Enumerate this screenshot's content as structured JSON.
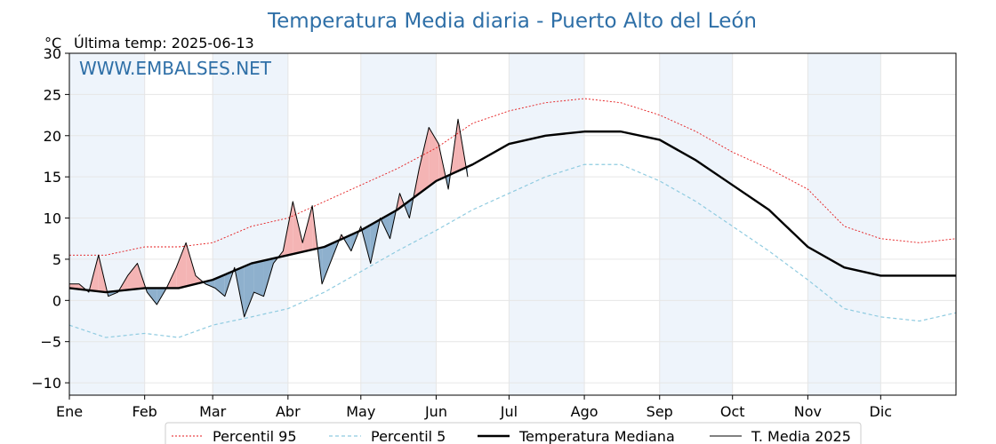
{
  "chart_data": {
    "type": "line",
    "title": "Temperatura Media diaria - Puerto Alto del León",
    "unit_label": "°C",
    "last_temp_label": "Última temp: 2025-06-13",
    "watermark": "WWW.EMBALSES.NET",
    "ylim": [
      -11.5,
      30
    ],
    "xlim": [
      0,
      365
    ],
    "y_ticks": [
      30,
      25,
      20,
      15,
      10,
      5,
      0,
      -5,
      -10
    ],
    "y_tick_labels": [
      "30",
      "25",
      "20",
      "15",
      "10",
      "5",
      "0",
      "−5",
      "−10"
    ],
    "months": [
      "Ene",
      "Feb",
      "Mar",
      "Abr",
      "May",
      "Jun",
      "Jul",
      "Ago",
      "Sep",
      "Oct",
      "Nov",
      "Dic"
    ],
    "month_days": [
      0,
      31,
      59,
      90,
      120,
      151,
      181,
      212,
      243,
      273,
      304,
      334
    ],
    "grid": true,
    "legend_position": "bottom-center",
    "legend": [
      "Percentil 95",
      "Percentil 5",
      "Temperatura Mediana",
      "T. Media 2025"
    ],
    "colors": {
      "p95": "#e41a1c",
      "p5": "#8fcbe0",
      "median": "#000000",
      "current": "#000000",
      "fill_above": "#f4b4b4",
      "fill_below": "#8eb0cd",
      "title": "#2e6fa7",
      "band": "#eef4fb"
    },
    "series": [
      {
        "name": "Percentil 95",
        "x": [
          0,
          15,
          31,
          45,
          59,
          75,
          90,
          105,
          120,
          135,
          151,
          166,
          181,
          196,
          212,
          227,
          243,
          258,
          273,
          288,
          304,
          319,
          334,
          350,
          365
        ],
        "values": [
          5.5,
          5.5,
          6.5,
          6.5,
          7,
          9,
          10,
          12,
          14,
          16,
          18.5,
          21.5,
          23,
          24,
          24.5,
          24,
          22.5,
          20.5,
          18,
          16,
          13.5,
          9,
          7.5,
          7,
          7.5
        ]
      },
      {
        "name": "Percentil 5",
        "x": [
          0,
          15,
          31,
          45,
          59,
          75,
          90,
          105,
          120,
          135,
          151,
          166,
          181,
          196,
          212,
          227,
          243,
          258,
          273,
          288,
          304,
          319,
          334,
          350,
          365
        ],
        "values": [
          -3,
          -4.5,
          -4,
          -4.5,
          -3,
          -2,
          -1,
          1,
          3.5,
          6,
          8.5,
          11,
          13,
          15,
          16.5,
          16.5,
          14.5,
          12,
          9,
          6,
          2.5,
          -1,
          -2,
          -2.5,
          -1.5
        ]
      },
      {
        "name": "Temperatura Mediana",
        "x": [
          0,
          15,
          31,
          45,
          59,
          75,
          90,
          105,
          120,
          135,
          151,
          166,
          181,
          196,
          212,
          227,
          243,
          258,
          273,
          288,
          304,
          319,
          334,
          350,
          365
        ],
        "values": [
          1.5,
          1,
          1.5,
          1.5,
          2.5,
          4.5,
          5.5,
          6.5,
          8.5,
          11,
          14.5,
          16.5,
          19,
          20,
          20.5,
          20.5,
          19.5,
          17,
          14,
          11,
          6.5,
          4,
          3,
          3,
          3
        ]
      },
      {
        "name": "T. Media 2025",
        "x": [
          0,
          4,
          8,
          12,
          16,
          20,
          24,
          28,
          32,
          36,
          40,
          44,
          48,
          52,
          56,
          60,
          64,
          68,
          72,
          76,
          80,
          84,
          88,
          92,
          96,
          100,
          104,
          108,
          112,
          116,
          120,
          124,
          128,
          132,
          136,
          140,
          144,
          148,
          152,
          156,
          160,
          164
        ],
        "values": [
          2,
          2,
          1,
          5.5,
          0.5,
          1,
          3,
          4.5,
          1,
          -0.5,
          1.5,
          4,
          7,
          3,
          2,
          1.5,
          0.5,
          4,
          -2,
          1,
          0.5,
          4.5,
          6,
          12,
          7,
          11.5,
          2,
          5,
          8,
          6,
          9,
          4.5,
          10,
          7.5,
          13,
          10,
          16,
          21,
          19,
          13.5,
          22,
          15
        ]
      }
    ]
  }
}
